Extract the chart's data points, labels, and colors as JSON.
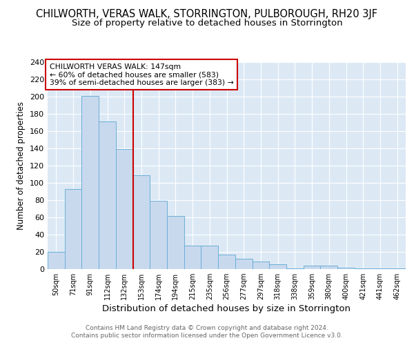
{
  "title": "CHILWORTH, VERAS WALK, STORRINGTON, PULBOROUGH, RH20 3JF",
  "subtitle": "Size of property relative to detached houses in Storrington",
  "xlabel": "Distribution of detached houses by size in Storrington",
  "ylabel": "Number of detached properties",
  "categories": [
    "50sqm",
    "71sqm",
    "91sqm",
    "112sqm",
    "132sqm",
    "153sqm",
    "174sqm",
    "194sqm",
    "215sqm",
    "235sqm",
    "256sqm",
    "277sqm",
    "297sqm",
    "318sqm",
    "338sqm",
    "359sqm",
    "380sqm",
    "400sqm",
    "421sqm",
    "441sqm",
    "462sqm"
  ],
  "values": [
    20,
    93,
    201,
    171,
    139,
    109,
    79,
    62,
    27,
    27,
    17,
    12,
    9,
    6,
    1,
    4,
    4,
    2,
    1,
    1,
    1
  ],
  "bar_color": "#c8d9ee",
  "bar_edge_color": "#6aaed6",
  "marker_label": "CHILWORTH VERAS WALK: 147sqm",
  "annotation_line1": "← 60% of detached houses are smaller (583)",
  "annotation_line2": "39% of semi-detached houses are larger (383) →",
  "vline_color": "#cc0000",
  "annotation_box_color": "#ffffff",
  "annotation_box_edge": "#cc0000",
  "ylim": [
    0,
    240
  ],
  "yticks": [
    0,
    20,
    40,
    60,
    80,
    100,
    120,
    140,
    160,
    180,
    200,
    220,
    240
  ],
  "footer1": "Contains HM Land Registry data © Crown copyright and database right 2024.",
  "footer2": "Contains public sector information licensed under the Open Government Licence v3.0.",
  "bg_color": "#dce9f5",
  "grid_color": "#ffffff",
  "fig_bg_color": "#ffffff"
}
